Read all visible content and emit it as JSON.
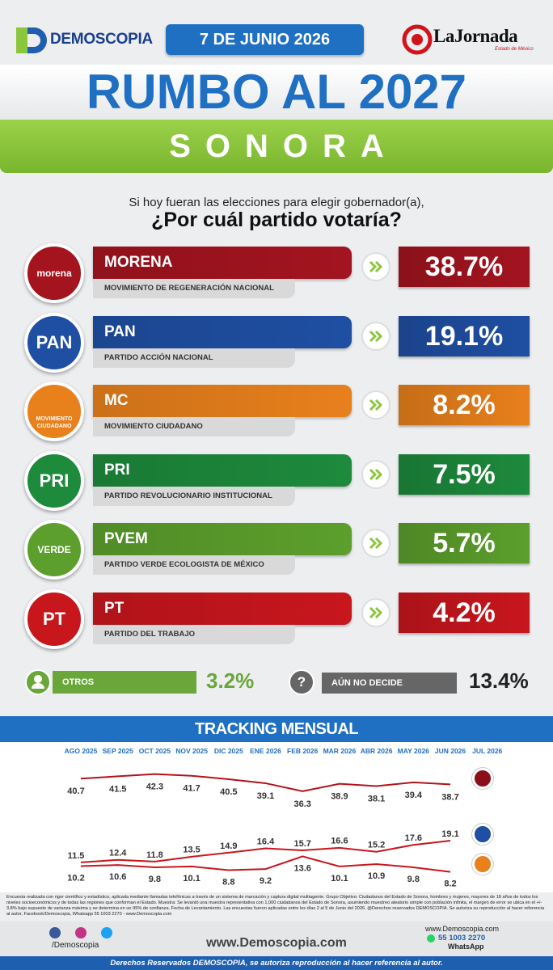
{
  "header": {
    "brand": "DEMOSCOPIA",
    "date": "7 DE JUNIO 2026",
    "partner": "LaJornada",
    "partner_sub": "Estado de México"
  },
  "title": "RUMBO AL 2027",
  "state": "SONORA",
  "question": {
    "intro": "Si hoy fueran las elecciones para elegir gobernador(a),",
    "main": "¿Por cuál partido votaría?"
  },
  "parties": [
    {
      "logo": "morena",
      "name": "MORENA",
      "full_name": "MOVIMIENTO DE REGENERACIÓN NACIONAL",
      "value": "38.7%",
      "color": "#a3141f"
    },
    {
      "logo": "PAN",
      "name": "PAN",
      "full_name": "PARTIDO ACCIÓN NACIONAL",
      "value": "19.1%",
      "color": "#1f4fa3"
    },
    {
      "logo": "MOVIMIENTO CIUDADANO",
      "name": "MC",
      "full_name": "MOVIMIENTO CIUDADANO",
      "value": "8.2%",
      "color": "#e8801c"
    },
    {
      "logo": "PRI",
      "name": "PRI",
      "full_name": "PARTIDO REVOLUCIONARIO INSTITUCIONAL",
      "value": "7.5%",
      "color": "#1d8a3c"
    },
    {
      "logo": "VERDE",
      "name": "PVEM",
      "full_name": "PARTIDO VERDE ECOLOGISTA DE MÉXICO",
      "value": "5.7%",
      "color": "#5c9f2c"
    },
    {
      "logo": "PT",
      "name": "PT",
      "full_name": "PARTIDO DEL TRABAJO",
      "value": "4.2%",
      "color": "#c8161d"
    }
  ],
  "others": [
    {
      "label": "OTROS",
      "value": "3.2%",
      "color": "#6aa63a"
    },
    {
      "icon": "?",
      "label": "AÚN NO DECIDE",
      "value": "13.4%",
      "color": "#666666"
    }
  ],
  "chart_data": {
    "type": "line",
    "title": "TRACKING MENSUAL",
    "categories": [
      "AGO 2025",
      "SEP 2025",
      "OCT 2025",
      "NOV 2025",
      "DIC 2025",
      "ENE 2026",
      "FEB 2026",
      "MAR 2026",
      "ABR 2026",
      "MAY 2026",
      "JUN 2026",
      "JUL 2026"
    ],
    "series": [
      {
        "color": "#b3121b",
        "values": [
          40.7,
          41.5,
          42.3,
          41.7,
          40.5,
          39.1,
          36.3,
          38.9,
          38.1,
          39.4,
          38.7,
          null
        ]
      },
      {
        "color": "#c8161d",
        "values": [
          11.5,
          12.4,
          11.8,
          13.5,
          14.9,
          16.4,
          15.7,
          16.6,
          15.2,
          17.6,
          19.1,
          null
        ]
      },
      {
        "color": "#c8161d",
        "values": [
          10.2,
          10.6,
          9.8,
          10.1,
          8.8,
          9.2,
          13.6,
          10.1,
          10.9,
          9.8,
          8.2,
          null
        ]
      }
    ],
    "ylim": [
      5,
      45
    ]
  },
  "footnote": "Encuesta realizada con rigor científico y estadístico, aplicada mediante llamadas telefónicas a través de un sistema de marcación y captura digital multiagente. Grupo Objetivo: Ciudadanos del Estado de Sonora, hombres y mujeres, mayores de 18 años de todos los niveles socioeconómicos y de todas las regiones que conforman el Estado. Muestra: Se levantó una muestra representativa con 1,000 ciudadanos del Estado de Sonora, asumiendo muestreo aleatorio simple con población infinita, el margen de error se ubica en el +/- 3.8% bajo supuesto de varianza máxima y se determina en un 95% de confianza. Fecha de Levantamiento. Las encuestas fueron aplicadas entre los días 2 al 5 de Junio del 2026. @Derechos reservados DEMOSCOPIA. Se autoriza su reproducción al hacer referencia al autor, Facebook/Demoscopia, Whatsapp 55 1003 2270 - www.Demoscopia.com",
  "footer": {
    "social": "/Demoscopia",
    "site": "www.Demoscopia.com",
    "whatsapp_site": "www.Demoscopia.com",
    "phone": "55 1003 2270",
    "whatsapp": "WhatsApp",
    "rights": "Derechos Reservados DEMOSCOPIA, se autoriza reproducción al hacer referencia al autor."
  }
}
